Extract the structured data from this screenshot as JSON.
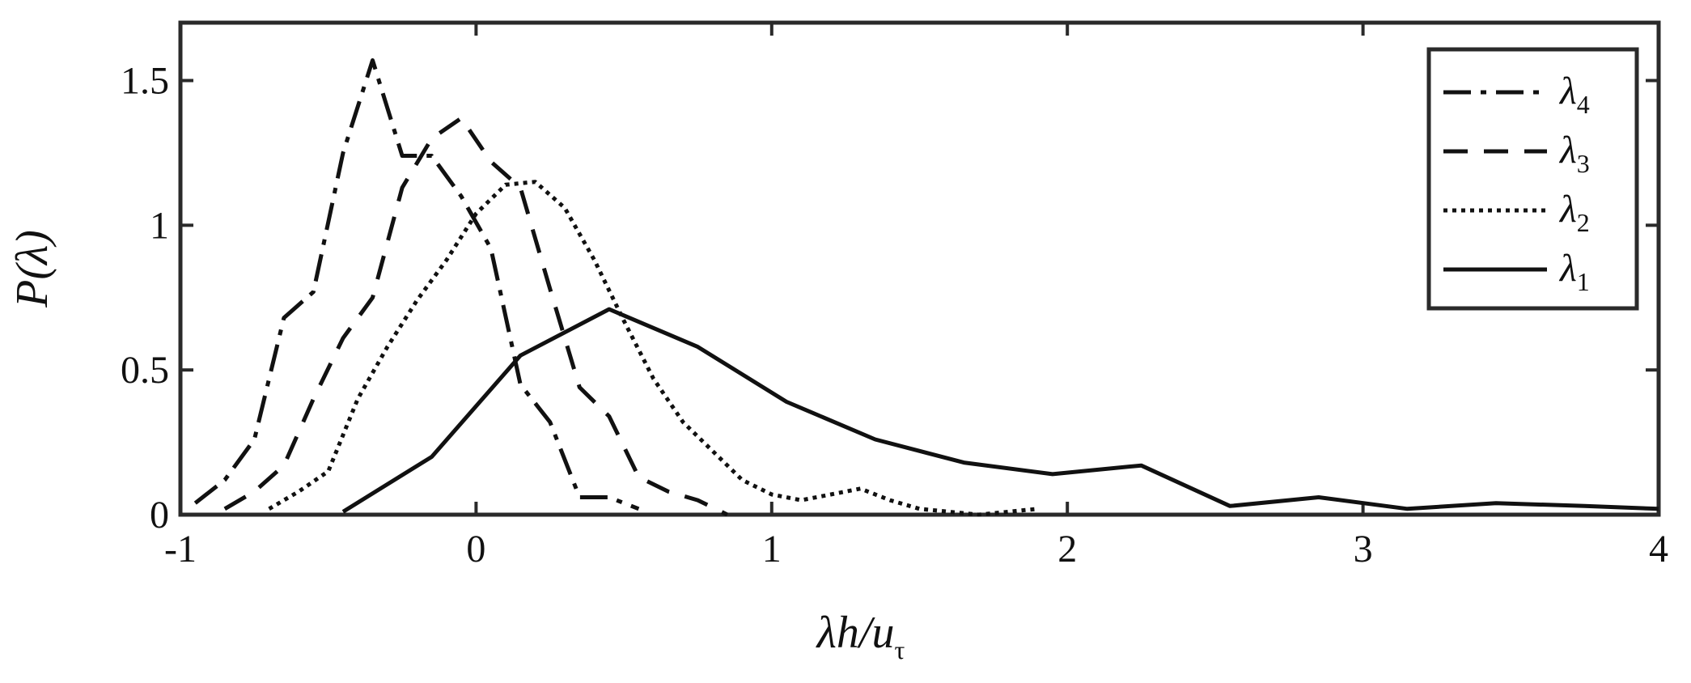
{
  "chart_data": {
    "type": "line",
    "title": "",
    "xlabel": "λh/u",
    "xlabel_sub": "τ",
    "ylabel": "P(λ)",
    "xlim": [
      -1,
      4
    ],
    "ylim": [
      0,
      1.7
    ],
    "xticks": [
      -1,
      0,
      1,
      2,
      3,
      4
    ],
    "xtick_labels": [
      "-1",
      "0",
      "1",
      "2",
      "3",
      "4"
    ],
    "yticks": [
      0,
      0.5,
      1,
      1.5
    ],
    "ytick_labels": [
      "0",
      "0.5",
      "1",
      "1.5"
    ],
    "grid": false,
    "legend_position": "top-right",
    "series": [
      {
        "name": "λ4",
        "name_base": "λ",
        "name_sub": "4",
        "style": "dashdot",
        "color": "#111111",
        "x": [
          -0.95,
          -0.85,
          -0.75,
          -0.65,
          -0.55,
          -0.45,
          -0.35,
          -0.25,
          -0.15,
          -0.05,
          0.05,
          0.15,
          0.25,
          0.35,
          0.45,
          0.55
        ],
        "y": [
          0.04,
          0.12,
          0.26,
          0.68,
          0.77,
          1.25,
          1.57,
          1.24,
          1.24,
          1.1,
          0.92,
          0.45,
          0.32,
          0.06,
          0.06,
          0.02
        ]
      },
      {
        "name": "λ3",
        "name_base": "λ",
        "name_sub": "3",
        "style": "dashed",
        "color": "#111111",
        "x": [
          -0.85,
          -0.75,
          -0.65,
          -0.55,
          -0.45,
          -0.35,
          -0.25,
          -0.15,
          -0.05,
          0.05,
          0.15,
          0.25,
          0.35,
          0.45,
          0.55,
          0.65,
          0.75,
          0.85
        ],
        "y": [
          0.02,
          0.08,
          0.17,
          0.4,
          0.61,
          0.75,
          1.13,
          1.3,
          1.37,
          1.22,
          1.13,
          0.78,
          0.44,
          0.34,
          0.13,
          0.08,
          0.05,
          0.0
        ]
      },
      {
        "name": "λ2",
        "name_base": "λ",
        "name_sub": "2",
        "style": "dotted",
        "color": "#111111",
        "x": [
          -0.7,
          -0.6,
          -0.5,
          -0.4,
          -0.3,
          -0.2,
          -0.1,
          0.0,
          0.1,
          0.2,
          0.3,
          0.4,
          0.5,
          0.6,
          0.7,
          0.8,
          0.9,
          1.0,
          1.1,
          1.2,
          1.3,
          1.4,
          1.5,
          1.6,
          1.7,
          1.8,
          1.9
        ],
        "y": [
          0.02,
          0.08,
          0.15,
          0.4,
          0.58,
          0.74,
          0.88,
          1.04,
          1.14,
          1.15,
          1.06,
          0.88,
          0.67,
          0.47,
          0.32,
          0.22,
          0.12,
          0.07,
          0.05,
          0.07,
          0.09,
          0.05,
          0.02,
          0.01,
          0.0,
          0.01,
          0.02
        ]
      },
      {
        "name": "λ1",
        "name_base": "λ",
        "name_sub": "1",
        "style": "solid",
        "color": "#111111",
        "x": [
          -0.45,
          -0.15,
          0.15,
          0.45,
          0.75,
          1.05,
          1.35,
          1.65,
          1.95,
          2.25,
          2.55,
          2.85,
          3.15,
          3.45,
          3.75,
          4.0
        ],
        "y": [
          0.01,
          0.2,
          0.55,
          0.71,
          0.58,
          0.39,
          0.26,
          0.18,
          0.14,
          0.17,
          0.03,
          0.06,
          0.02,
          0.04,
          0.03,
          0.02
        ]
      }
    ]
  }
}
